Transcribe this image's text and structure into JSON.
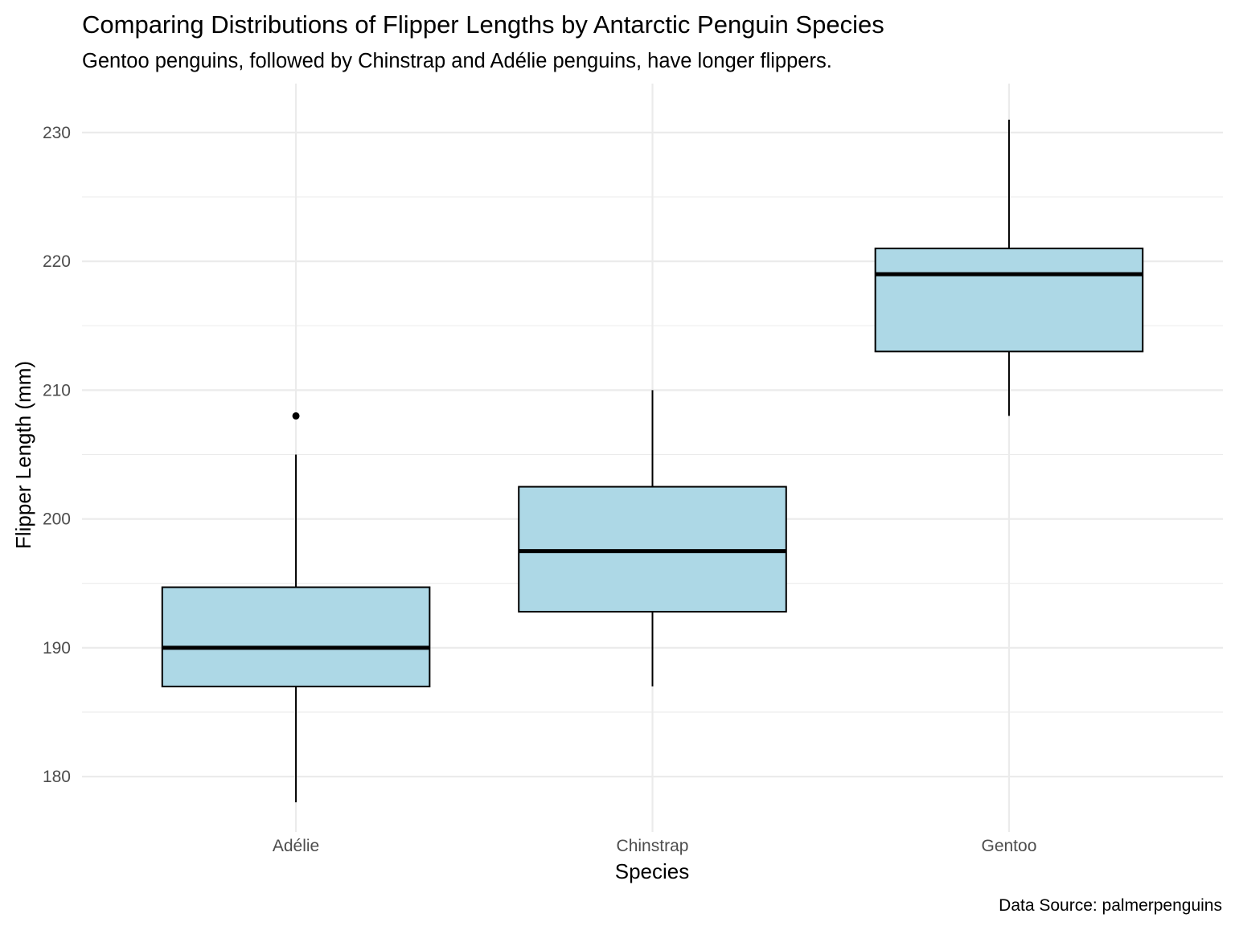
{
  "chart_data": {
    "type": "box",
    "title": "Comparing Distributions of Flipper Lengths by Antarctic Penguin Species",
    "subtitle": "Gentoo penguins, followed by Chinstrap and Adélie penguins, have longer flippers.",
    "xlabel": "Species",
    "ylabel": "Flipper Length (mm)",
    "caption": "Data Source: palmerpenguins",
    "categories": [
      "Adélie",
      "Chinstrap",
      "Gentoo"
    ],
    "ylim": [
      175.7,
      233.8
    ],
    "yticks": [
      180,
      190,
      200,
      210,
      220,
      230
    ],
    "grid": true,
    "legend": "none",
    "boxes": [
      {
        "category": "Adélie",
        "min": 178,
        "q1": 186.99,
        "median": 190,
        "q3": 194.7,
        "max": 205,
        "outliers": [
          208
        ]
      },
      {
        "category": "Chinstrap",
        "min": 187,
        "q1": 192.8,
        "median": 197.5,
        "q3": 202.5,
        "max": 210,
        "outliers": []
      },
      {
        "category": "Gentoo",
        "min": 208,
        "q1": 213,
        "median": 219,
        "q3": 221,
        "max": 231,
        "outliers": []
      }
    ],
    "colors": {
      "box_fill": "#add8e6",
      "box_stroke": "#000000",
      "grid": "#ebebeb"
    }
  }
}
